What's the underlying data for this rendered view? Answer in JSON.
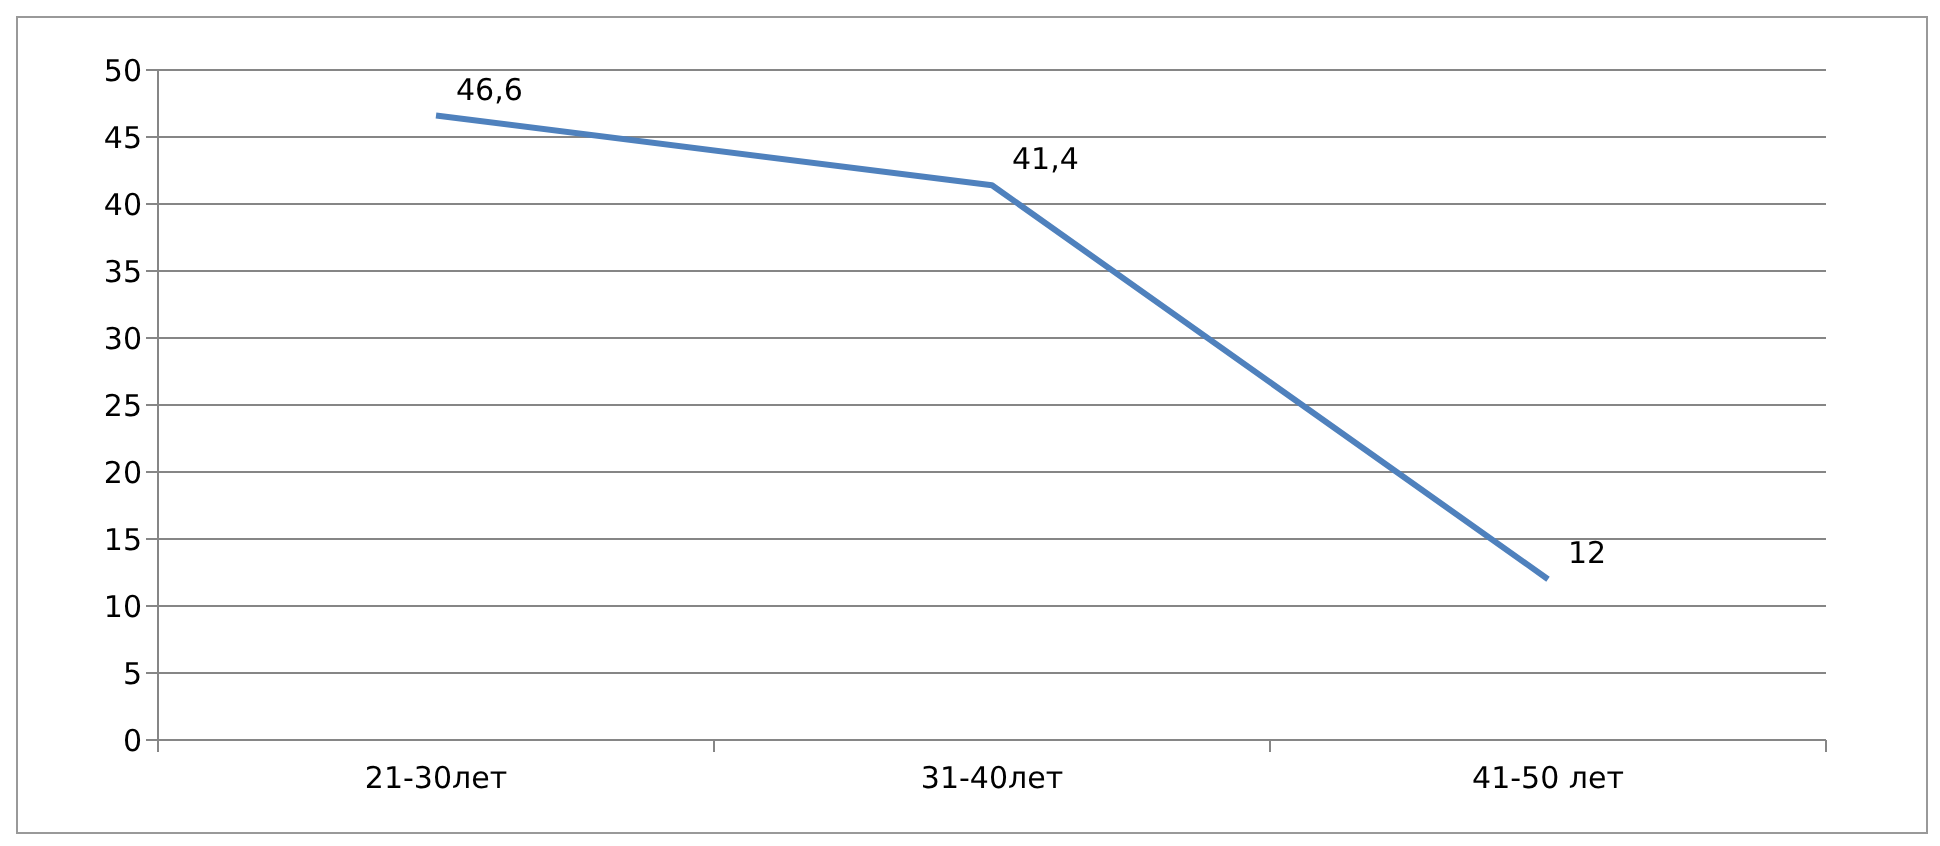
{
  "chart_data": {
    "type": "line",
    "categories": [
      "21-30лет",
      "31-40лет",
      "41-50 лет"
    ],
    "series": [
      {
        "color": "#4f81bd",
        "values": [
          46.6,
          41.4,
          12
        ],
        "value_labels": [
          "46,6",
          "41,4",
          "12"
        ]
      }
    ],
    "ylim": [
      0,
      50
    ],
    "yticks": [
      0,
      5,
      10,
      15,
      20,
      25,
      30,
      35,
      40,
      45,
      50
    ],
    "grid": "y",
    "marker": "none",
    "line_style": "solid"
  }
}
